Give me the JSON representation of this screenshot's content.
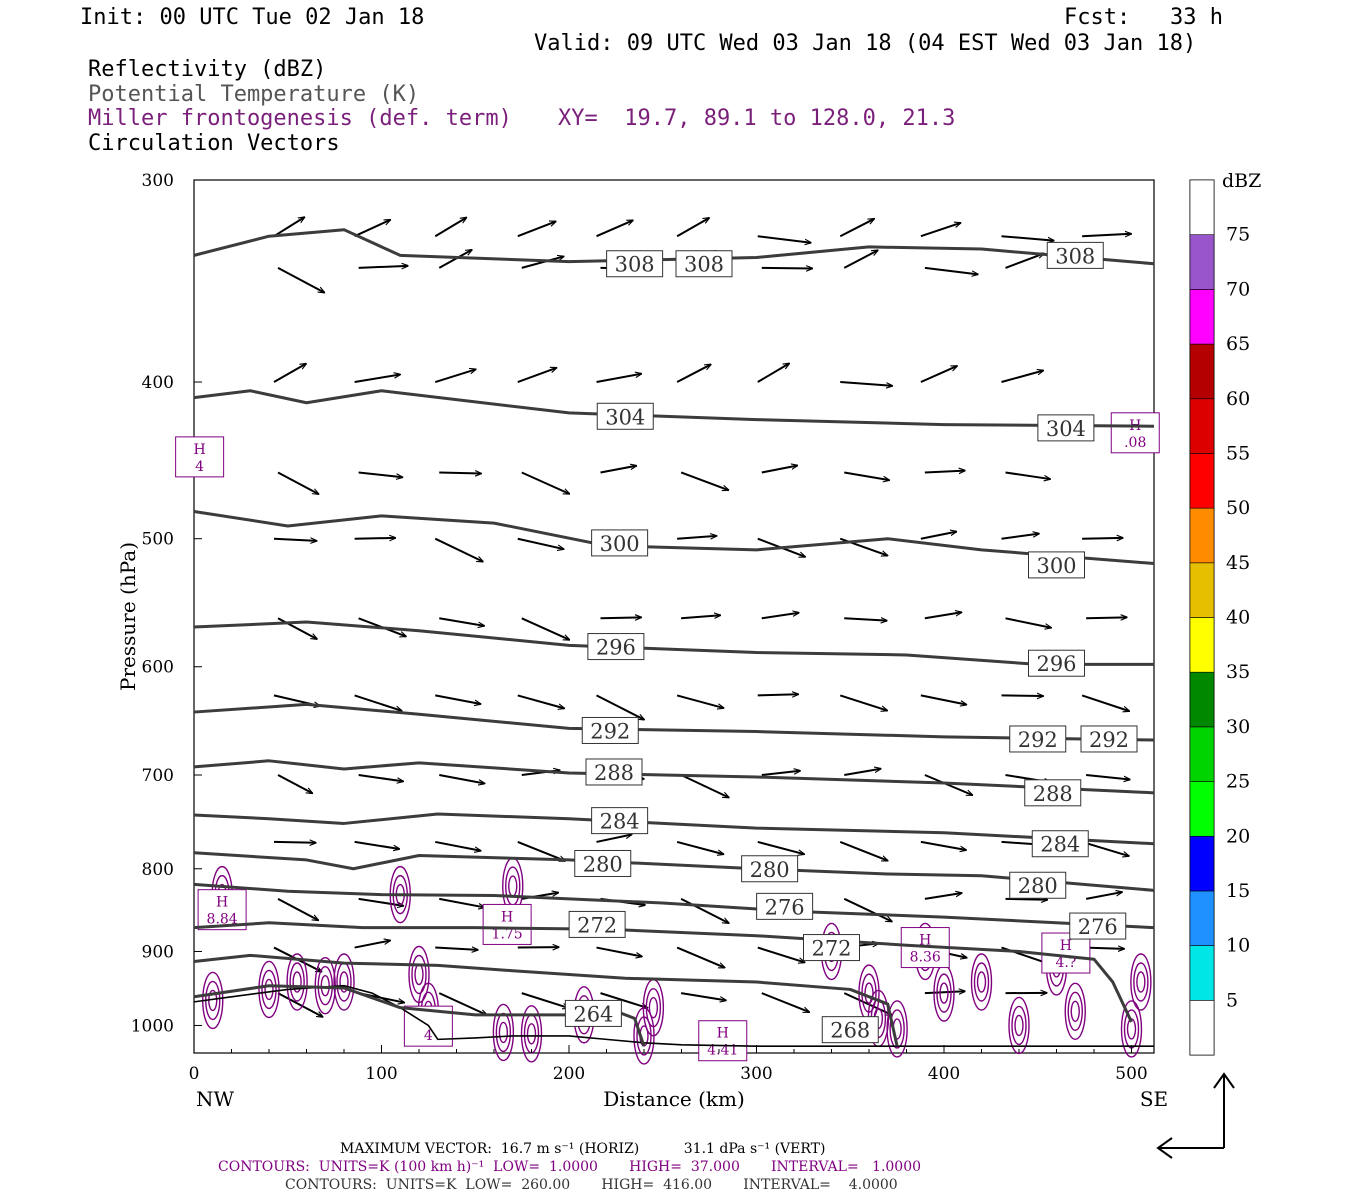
{
  "header": {
    "init": "Init: 00 UTC Tue 02 Jan 18",
    "fcst": "Fcst:   33 h",
    "valid": "Valid: 09 UTC Wed 03 Jan 18 (04 EST Wed 03 Jan 18)"
  },
  "legend": {
    "reflectivity": "Reflectivity (dBZ)",
    "theta": "Potential Temperature (K)",
    "miller": "Miller frontogenesis (def. term)",
    "xy": "XY=  19.7, 89.1 to 128.0, 21.3",
    "vectors": "Circulation Vectors"
  },
  "colors": {
    "theta_line": "#3c3c3c",
    "frontogenesis": "#800080",
    "terrain": "#000000"
  },
  "chart_data": {
    "type": "line",
    "xlabel": "Distance (km)",
    "ylabel": "Pressure (hPa)",
    "xlim": [
      0,
      512
    ],
    "ylim": [
      1040,
      300
    ],
    "y_scale": "log",
    "xticks": [
      0,
      100,
      200,
      300,
      400,
      500
    ],
    "x_tick_labels": [
      "0",
      "100",
      "200",
      "300",
      "400",
      "500"
    ],
    "yticks": [
      300,
      400,
      500,
      600,
      700,
      800,
      900,
      1000
    ],
    "y_tick_labels": [
      "300",
      "400",
      "500",
      "600",
      "700",
      "800",
      "900",
      "1000"
    ],
    "x_end_labels": [
      "NW",
      "SE"
    ],
    "theta_contours": [
      {
        "level": 308,
        "labels": [
          {
            "text": "308",
            "x": 235,
            "p": 338
          },
          {
            "text": "308",
            "x": 272,
            "p": 338
          },
          {
            "text": "308",
            "x": 470,
            "p": 334
          }
        ],
        "points": [
          [
            0,
            334
          ],
          [
            40,
            325
          ],
          [
            80,
            322
          ],
          [
            110,
            334
          ],
          [
            200,
            337
          ],
          [
            300,
            335
          ],
          [
            360,
            330
          ],
          [
            420,
            331
          ],
          [
            512,
            338
          ]
        ]
      },
      {
        "level": 304,
        "labels": [
          {
            "text": "304",
            "x": 230,
            "p": 420
          },
          {
            "text": "304",
            "x": 465,
            "p": 427
          }
        ],
        "points": [
          [
            0,
            409
          ],
          [
            30,
            405
          ],
          [
            60,
            412
          ],
          [
            100,
            405
          ],
          [
            200,
            418
          ],
          [
            300,
            422
          ],
          [
            400,
            425
          ],
          [
            512,
            426
          ]
        ]
      },
      {
        "level": 300,
        "labels": [
          {
            "text": "300",
            "x": 227,
            "p": 503
          },
          {
            "text": "300",
            "x": 460,
            "p": 519
          }
        ],
        "points": [
          [
            0,
            481
          ],
          [
            50,
            491
          ],
          [
            100,
            484
          ],
          [
            160,
            489
          ],
          [
            220,
            505
          ],
          [
            300,
            508
          ],
          [
            370,
            500
          ],
          [
            420,
            508
          ],
          [
            512,
            518
          ]
        ]
      },
      {
        "level": 296,
        "labels": [
          {
            "text": "296",
            "x": 225,
            "p": 583
          },
          {
            "text": "296",
            "x": 460,
            "p": 597
          }
        ],
        "points": [
          [
            0,
            567
          ],
          [
            60,
            563
          ],
          [
            120,
            570
          ],
          [
            200,
            582
          ],
          [
            300,
            588
          ],
          [
            380,
            590
          ],
          [
            450,
            598
          ],
          [
            512,
            598
          ]
        ]
      },
      {
        "level": 292,
        "labels": [
          {
            "text": "292",
            "x": 222,
            "p": 657
          },
          {
            "text": "292",
            "x": 450,
            "p": 665
          },
          {
            "text": "292",
            "x": 488,
            "p": 665
          }
        ],
        "points": [
          [
            0,
            640
          ],
          [
            60,
            633
          ],
          [
            120,
            642
          ],
          [
            200,
            655
          ],
          [
            300,
            658
          ],
          [
            400,
            663
          ],
          [
            512,
            666
          ]
        ]
      },
      {
        "level": 288,
        "labels": [
          {
            "text": "288",
            "x": 224,
            "p": 697
          },
          {
            "text": "288",
            "x": 458,
            "p": 718
          }
        ],
        "points": [
          [
            0,
            692
          ],
          [
            40,
            686
          ],
          [
            80,
            694
          ],
          [
            120,
            688
          ],
          [
            200,
            698
          ],
          [
            300,
            702
          ],
          [
            400,
            708
          ],
          [
            512,
            718
          ]
        ]
      },
      {
        "level": 284,
        "labels": [
          {
            "text": "284",
            "x": 227,
            "p": 747
          },
          {
            "text": "284",
            "x": 462,
            "p": 772
          }
        ],
        "points": [
          [
            0,
            741
          ],
          [
            40,
            745
          ],
          [
            80,
            750
          ],
          [
            130,
            740
          ],
          [
            200,
            745
          ],
          [
            300,
            755
          ],
          [
            400,
            760
          ],
          [
            512,
            772
          ]
        ]
      },
      {
        "level": 280,
        "labels": [
          {
            "text": "280",
            "x": 218,
            "p": 794
          },
          {
            "text": "280",
            "x": 307,
            "p": 800
          },
          {
            "text": "280",
            "x": 450,
            "p": 819
          }
        ],
        "points": [
          [
            0,
            782
          ],
          [
            60,
            790
          ],
          [
            85,
            800
          ],
          [
            120,
            785
          ],
          [
            200,
            790
          ],
          [
            300,
            800
          ],
          [
            370,
            806
          ],
          [
            420,
            808
          ],
          [
            512,
            825
          ]
        ]
      },
      {
        "level": 276,
        "labels": [
          {
            "text": "276",
            "x": 315,
            "p": 844
          },
          {
            "text": "276",
            "x": 482,
            "p": 868
          }
        ],
        "points": [
          [
            0,
            818
          ],
          [
            50,
            826
          ],
          [
            100,
            830
          ],
          [
            160,
            831
          ],
          [
            250,
            840
          ],
          [
            320,
            850
          ],
          [
            400,
            857
          ],
          [
            512,
            870
          ]
        ]
      },
      {
        "level": 272,
        "labels": [
          {
            "text": "272",
            "x": 215,
            "p": 866
          },
          {
            "text": "272",
            "x": 340,
            "p": 895
          }
        ],
        "points": [
          [
            0,
            870
          ],
          [
            40,
            864
          ],
          [
            90,
            870
          ],
          [
            150,
            870
          ],
          [
            220,
            872
          ],
          [
            300,
            880
          ],
          [
            380,
            892
          ],
          [
            440,
            900
          ],
          [
            480,
            910
          ],
          [
            490,
            940
          ],
          [
            500,
            995
          ]
        ]
      },
      {
        "level": 268,
        "labels": [
          {
            "text": "268",
            "x": 350,
            "p": 1006
          }
        ],
        "points": [
          [
            0,
            913
          ],
          [
            30,
            905
          ],
          [
            80,
            915
          ],
          [
            130,
            918
          ],
          [
            170,
            925
          ],
          [
            230,
            935
          ],
          [
            300,
            940
          ],
          [
            350,
            950
          ],
          [
            370,
            970
          ],
          [
            375,
            1030
          ]
        ]
      },
      {
        "level": 264,
        "labels": [
          {
            "text": "264",
            "x": 213,
            "p": 983
          }
        ],
        "points": [
          [
            0,
            960
          ],
          [
            40,
            945
          ],
          [
            80,
            948
          ],
          [
            110,
            975
          ],
          [
            150,
            985
          ],
          [
            200,
            985
          ],
          [
            220,
            975
          ],
          [
            235,
            990
          ],
          [
            240,
            1030
          ]
        ]
      }
    ],
    "terrain": [
      [
        0,
        967
      ],
      [
        20,
        960
      ],
      [
        50,
        950
      ],
      [
        80,
        945
      ],
      [
        95,
        955
      ],
      [
        110,
        975
      ],
      [
        125,
        1000
      ],
      [
        130,
        1020
      ],
      [
        150,
        1018
      ],
      [
        170,
        1015
      ],
      [
        200,
        1015
      ],
      [
        220,
        1020
      ],
      [
        240,
        1025
      ],
      [
        260,
        1028
      ],
      [
        300,
        1030
      ],
      [
        512,
        1030
      ]
    ],
    "frontogenesis_labels": [
      {
        "text": "H",
        "value": "8.84",
        "x": 15,
        "p": 848
      },
      {
        "text": "H",
        "value": "1.75",
        "x": 167,
        "p": 866
      },
      {
        "text": "H",
        "value": "8.36",
        "x": 390,
        "p": 895
      },
      {
        "text": "H",
        "value": "4.41",
        "x": 282,
        "p": 1022
      },
      {
        "text": "H",
        "value": "4.?",
        "x": 465,
        "p": 902
      },
      {
        "text": "H",
        "value": ".08",
        "x": 502,
        "p": 430
      },
      {
        "text": "H",
        "value": "4",
        "x": 3,
        "p": 445
      },
      {
        "text": "",
        "value": "4",
        "x": 125,
        "p": 1001
      }
    ],
    "colorbar": {
      "title": "dBZ",
      "levels": [
        "5",
        "10",
        "15",
        "20",
        "25",
        "30",
        "35",
        "40",
        "45",
        "50",
        "55",
        "60",
        "65",
        "70",
        "75"
      ],
      "colors": [
        "#00e6e6",
        "#1e90ff",
        "#0000ff",
        "#00ff00",
        "#00d400",
        "#008800",
        "#ffff00",
        "#e6c000",
        "#ff8c00",
        "#ff0000",
        "#dc0000",
        "#b40000",
        "#ff00ff",
        "#9955cc",
        "#ffffff"
      ]
    }
  },
  "footer": {
    "max_vector": "MAXIMUM VECTOR:  16.7 m s⁻¹ (HORIZ)          31.1 dPa s⁻¹ (VERT)",
    "contours_purple": "CONTOURS:  UNITS=K (100 km h)⁻¹  LOW=  1.0000       HIGH=  37.000       INTERVAL=   1.0000",
    "contours_black": "CONTOURS:  UNITS=K  LOW=  260.00       HIGH=  416.00       INTERVAL=    4.0000"
  }
}
